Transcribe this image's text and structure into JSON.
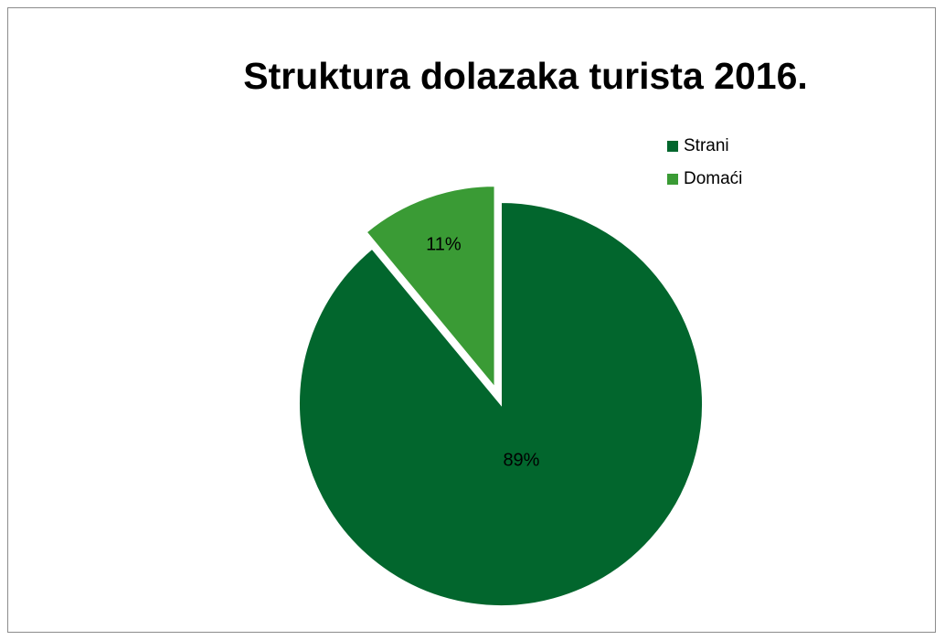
{
  "chart_data": {
    "type": "pie",
    "title": "Struktura dolazaka turista 2016.",
    "categories": [
      "Strani",
      "Domaći"
    ],
    "values": [
      89,
      11
    ],
    "data_labels": [
      "89%",
      "11%"
    ],
    "colors": [
      "#02662D",
      "#3A9B35"
    ],
    "exploded": [
      "Domaći"
    ],
    "legend_position": "top-right"
  }
}
